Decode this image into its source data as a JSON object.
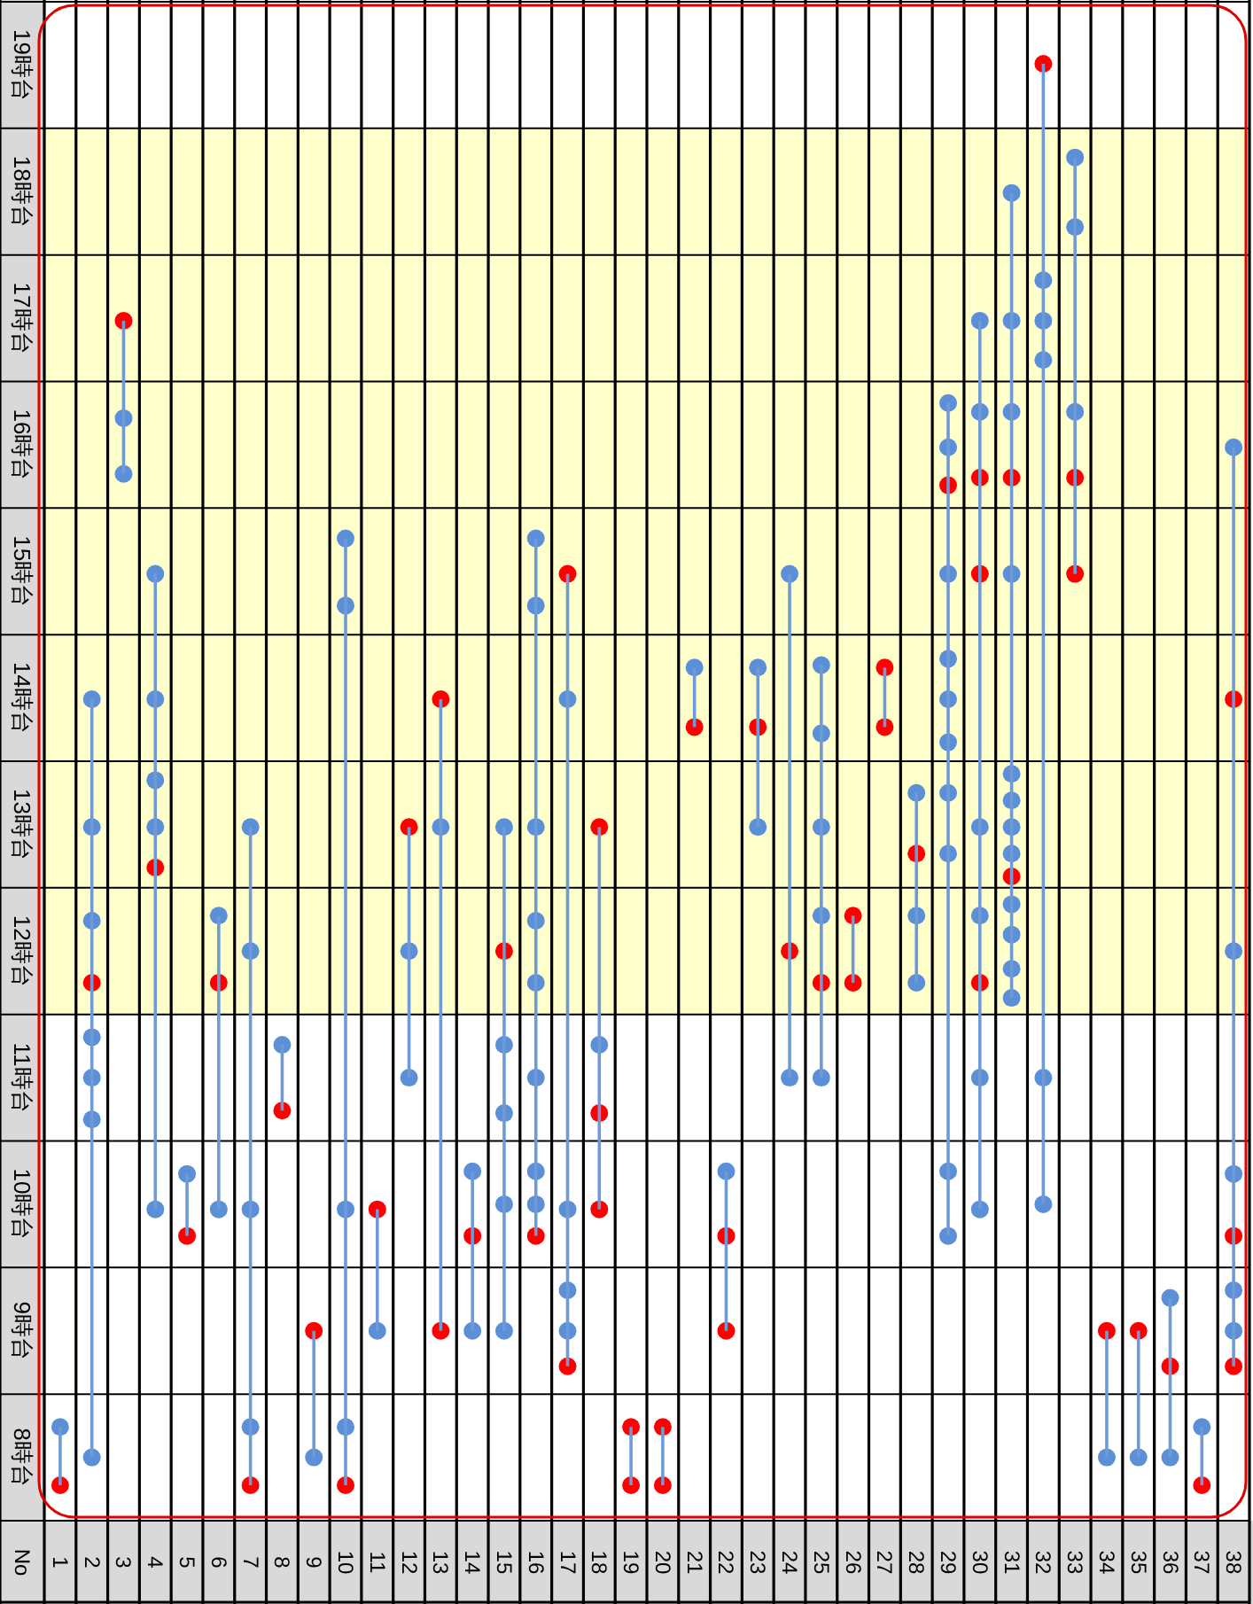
{
  "chart_data": {
    "type": "scatter",
    "annotations": [
      "No"
    ],
    "categories": [
      "1",
      "2",
      "3",
      "4",
      "5",
      "6",
      "7",
      "8",
      "9",
      "10",
      "11",
      "12",
      "13",
      "14",
      "15",
      "16",
      "17",
      "18",
      "19",
      "20",
      "21",
      "22",
      "23",
      "24",
      "25",
      "26",
      "27",
      "28",
      "29",
      "30",
      "31",
      "32",
      "33",
      "34",
      "35",
      "36",
      "37",
      "38"
    ],
    "ylim": [
      8,
      20
    ],
    "yticks": [
      {
        "value": 8,
        "label": null
      },
      {
        "value": 8.5,
        "label": "8時台"
      },
      {
        "value": 9,
        "label": null
      },
      {
        "value": 9.5,
        "label": "9時台"
      },
      {
        "value": 10,
        "label": null
      },
      {
        "value": 10.5,
        "label": "10時台"
      },
      {
        "value": 11,
        "label": null
      },
      {
        "value": 11.5,
        "label": "11時台"
      },
      {
        "value": 12,
        "label": null
      },
      {
        "value": 12.5,
        "label": "12時台"
      },
      {
        "value": 13,
        "label": null
      },
      {
        "value": 13.5,
        "label": "13時台"
      },
      {
        "value": 14,
        "label": null
      },
      {
        "value": 14.5,
        "label": "14時台"
      },
      {
        "value": 15,
        "label": null
      },
      {
        "value": 15.5,
        "label": "15時台"
      },
      {
        "value": 16,
        "label": null
      },
      {
        "value": 16.5,
        "label": "16時台"
      },
      {
        "value": 17,
        "label": null
      },
      {
        "value": 17.5,
        "label": "17時台"
      },
      {
        "value": 18,
        "label": null
      },
      {
        "value": 18.5,
        "label": "18時台"
      },
      {
        "value": 19,
        "label": null
      },
      {
        "value": 19.5,
        "label": "19時台"
      },
      {
        "value": 20,
        "label": null
      }
    ],
    "grid": true,
    "bands": [
      {
        "axis": "y",
        "from": 12,
        "to": 19,
        "color": "#ffffcc"
      }
    ],
    "series": [
      {
        "type": "bar",
        "color": "#6f9ad6",
        "base": [
          8.28,
          8.5,
          16.27,
          10.46,
          10.25,
          10.46,
          8.28,
          11.24,
          8.5,
          8.28,
          9.5,
          11.5,
          9.5,
          9.5,
          9.5,
          10.25,
          9.22,
          10.46,
          8.28,
          8.28,
          14.27,
          9.5,
          13.48,
          11.5,
          11.5,
          12.25,
          14.27,
          12.25,
          10.25,
          10.46,
          12.13,
          10.5,
          15.48,
          8.5,
          8.5,
          8.5,
          8.28,
          9.22
        ],
        "values": [
          0.46,
          5.99,
          1.21,
          5.02,
          0.49,
          2.32,
          5.2,
          0.52,
          1.0,
          7.48,
          0.96,
          1.98,
          4.99,
          1.26,
          3.98,
          5.51,
          6.26,
          3.02,
          0.46,
          0.46,
          0.47,
          1.26,
          1.26,
          3.98,
          3.26,
          0.53,
          0.47,
          1.5,
          6.58,
          7.02,
          6.36,
          9.01,
          3.29,
          1.0,
          1.0,
          1.26,
          0.46,
          7.26
        ]
      },
      {
        "color": "#5b8fd8",
        "x": [
          "1",
          "2",
          "2",
          "2",
          "2",
          "2",
          "2",
          "2",
          "3",
          "3",
          "4",
          "4",
          "4",
          "4",
          "4",
          "5",
          "6",
          "6",
          "7",
          "7",
          "7",
          "7",
          "8",
          "9",
          "10",
          "10",
          "10",
          "10",
          "11",
          "12",
          "12",
          "13",
          "14",
          "14",
          "15",
          "15",
          "15",
          "15",
          "15",
          "16",
          "16",
          "16",
          "16",
          "16",
          "16",
          "16",
          "16",
          "17",
          "17",
          "17",
          "17",
          "18",
          "21",
          "22",
          "23",
          "23",
          "24",
          "24",
          "25",
          "25",
          "25",
          "25",
          "25",
          "28",
          "28",
          "28",
          "29",
          "29",
          "29",
          "29",
          "29",
          "29",
          "29",
          "29",
          "29",
          "29",
          "30",
          "30",
          "30",
          "30",
          "30",
          "30",
          "31",
          "31",
          "31",
          "31",
          "31",
          "31",
          "31",
          "31",
          "31",
          "31",
          "31",
          "31",
          "32",
          "32",
          "32",
          "32",
          "32",
          "33",
          "33",
          "33",
          "34",
          "35",
          "36",
          "36",
          "37",
          "38",
          "38",
          "38",
          "38",
          "38"
        ],
        "values": [
          8.74,
          14.49,
          13.48,
          12.74,
          11.82,
          11.5,
          11.17,
          8.5,
          16.71,
          16.27,
          15.48,
          14.49,
          13.85,
          13.48,
          10.46,
          10.74,
          12.78,
          10.46,
          13.48,
          12.5,
          10.46,
          8.74,
          11.76,
          8.5,
          15.76,
          15.23,
          10.46,
          8.74,
          9.5,
          12.5,
          11.5,
          13.48,
          10.76,
          9.5,
          13.48,
          11.76,
          11.22,
          10.5,
          9.5,
          15.76,
          15.23,
          13.48,
          12.74,
          12.25,
          11.5,
          10.76,
          10.5,
          14.49,
          10.46,
          9.82,
          9.5,
          11.76,
          14.74,
          10.76,
          14.74,
          13.48,
          15.48,
          11.5,
          14.76,
          14.22,
          13.48,
          12.78,
          11.5,
          13.75,
          12.78,
          12.25,
          16.83,
          16.48,
          15.48,
          14.81,
          14.49,
          14.15,
          13.75,
          13.27,
          10.76,
          10.25,
          17.48,
          16.76,
          13.48,
          12.78,
          11.5,
          10.46,
          18.49,
          17.48,
          16.76,
          15.48,
          13.9,
          13.69,
          13.48,
          13.27,
          12.87,
          12.63,
          12.36,
          12.13,
          17.8,
          17.48,
          17.17,
          11.5,
          10.5,
          18.77,
          18.22,
          16.76,
          8.5,
          8.5,
          9.76,
          8.5,
          8.74,
          16.48,
          12.5,
          10.74,
          9.82,
          9.5
        ]
      },
      {
        "color": "#ff0000",
        "x": [
          "1",
          "2",
          "3",
          "4",
          "5",
          "6",
          "7",
          "8",
          "9",
          "10",
          "11",
          "12",
          "13",
          "13",
          "14",
          "15",
          "16",
          "17",
          "17",
          "18",
          "18",
          "18",
          "19",
          "19",
          "20",
          "20",
          "21",
          "22",
          "22",
          "23",
          "24",
          "25",
          "26",
          "26",
          "27",
          "27",
          "28",
          "29",
          "30",
          "30",
          "30",
          "31",
          "31",
          "32",
          "33",
          "33",
          "34",
          "35",
          "36",
          "37",
          "38",
          "38",
          "38"
        ],
        "values": [
          8.28,
          12.25,
          17.48,
          13.16,
          10.25,
          12.25,
          8.28,
          11.24,
          9.5,
          8.28,
          10.46,
          13.48,
          14.49,
          9.5,
          10.25,
          12.5,
          10.25,
          15.48,
          9.22,
          13.48,
          11.22,
          10.46,
          8.74,
          8.28,
          8.74,
          8.28,
          14.27,
          10.25,
          9.5,
          14.27,
          12.5,
          12.25,
          12.78,
          12.25,
          14.74,
          14.27,
          13.27,
          16.18,
          16.24,
          15.48,
          12.25,
          16.24,
          13.09,
          19.51,
          16.24,
          15.48,
          9.5,
          9.5,
          9.22,
          8.28,
          14.49,
          10.25,
          9.22
        ]
      }
    ]
  }
}
